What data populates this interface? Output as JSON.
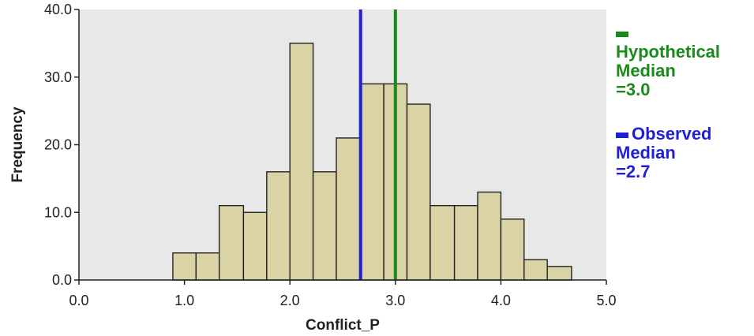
{
  "chart_data": {
    "type": "bar",
    "xlabel": "Conflict_P",
    "ylabel": "Frequency",
    "xlim": [
      0.0,
      5.0
    ],
    "ylim": [
      0.0,
      40.0
    ],
    "x_ticks": [
      "0.0",
      "1.0",
      "2.0",
      "3.0",
      "4.0",
      "5.0"
    ],
    "y_ticks": [
      "0.0",
      "10.0",
      "20.0",
      "30.0",
      "40.0"
    ],
    "bins": [
      {
        "x0": 0.89,
        "x1": 1.11,
        "value": 4
      },
      {
        "x0": 1.11,
        "x1": 1.33,
        "value": 4
      },
      {
        "x0": 1.33,
        "x1": 1.56,
        "value": 11
      },
      {
        "x0": 1.56,
        "x1": 1.78,
        "value": 10
      },
      {
        "x0": 1.78,
        "x1": 2.0,
        "value": 16
      },
      {
        "x0": 2.0,
        "x1": 2.22,
        "value": 35
      },
      {
        "x0": 2.22,
        "x1": 2.44,
        "value": 16
      },
      {
        "x0": 2.44,
        "x1": 2.67,
        "value": 21
      },
      {
        "x0": 2.67,
        "x1": 2.89,
        "value": 29
      },
      {
        "x0": 2.89,
        "x1": 3.11,
        "value": 29
      },
      {
        "x0": 3.11,
        "x1": 3.33,
        "value": 26
      },
      {
        "x0": 3.33,
        "x1": 3.56,
        "value": 11
      },
      {
        "x0": 3.56,
        "x1": 3.78,
        "value": 11
      },
      {
        "x0": 3.78,
        "x1": 4.0,
        "value": 13
      },
      {
        "x0": 4.0,
        "x1": 4.22,
        "value": 9
      },
      {
        "x0": 4.22,
        "x1": 4.44,
        "value": 3
      },
      {
        "x0": 4.44,
        "x1": 4.67,
        "value": 2
      }
    ],
    "reference_lines": [
      {
        "label": "Observed Median =2.7",
        "x": 2.67,
        "color": "#1f1fd6"
      },
      {
        "label": "Hypothetical Median =3.0",
        "x": 3.0,
        "color": "#1a8a1a"
      }
    ]
  },
  "legend": {
    "hypothetical": {
      "lines": [
        "Hypothetical",
        "Median",
        "=3.0"
      ],
      "color": "#1a8a1a"
    },
    "observed": {
      "lines": [
        "Observed",
        "Median",
        "=2.7"
      ],
      "color": "#1f1fd6"
    }
  },
  "style": {
    "plot_background": "#e8e8e8",
    "bar_fill": "#d9d3a6",
    "bar_stroke": "#222222"
  }
}
